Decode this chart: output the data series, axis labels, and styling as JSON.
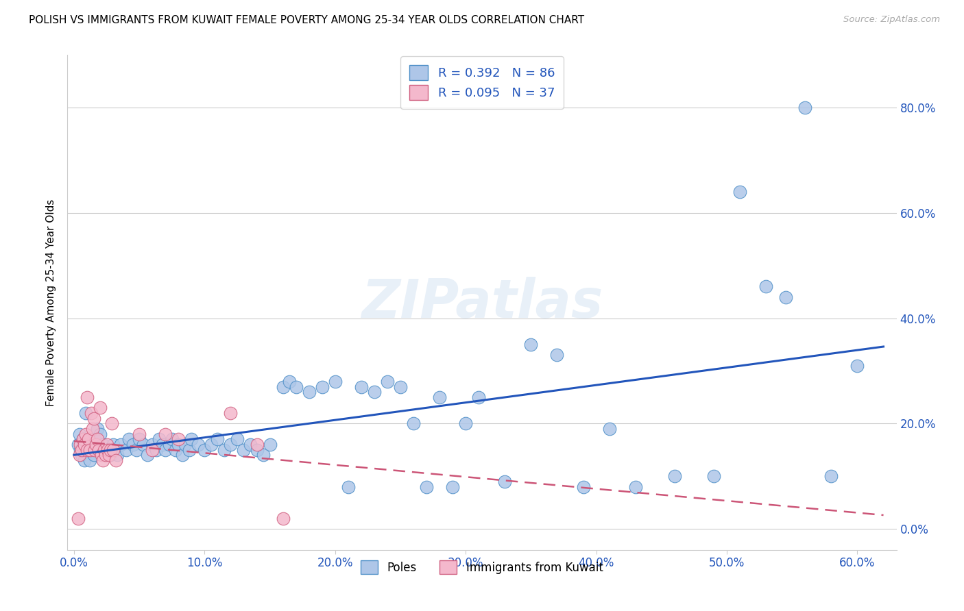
{
  "title": "POLISH VS IMMIGRANTS FROM KUWAIT FEMALE POVERTY AMONG 25-34 YEAR OLDS CORRELATION CHART",
  "source": "Source: ZipAtlas.com",
  "ylabel": "Female Poverty Among 25-34 Year Olds",
  "xlim": [
    -0.005,
    0.63
  ],
  "ylim": [
    -0.04,
    0.9
  ],
  "xticks": [
    0.0,
    0.1,
    0.2,
    0.3,
    0.4,
    0.5,
    0.6
  ],
  "xticklabels": [
    "0.0%",
    "10.0%",
    "20.0%",
    "30.0%",
    "40.0%",
    "50.0%",
    "60.0%"
  ],
  "yticks_right": [
    0.0,
    0.2,
    0.4,
    0.6,
    0.8
  ],
  "yticklabels_right": [
    "0.0%",
    "20.0%",
    "40.0%",
    "60.0%",
    "80.0%"
  ],
  "poles_color": "#aec6e8",
  "poles_edge_color": "#4f90c8",
  "kuwait_color": "#f4b8cc",
  "kuwait_edge_color": "#d06080",
  "poles_line_color": "#2255bb",
  "kuwait_line_color": "#cc5577",
  "poles_R": 0.392,
  "poles_N": 86,
  "kuwait_R": 0.095,
  "kuwait_N": 37,
  "watermark": "ZIPatlas",
  "poles_x": [
    0.003,
    0.004,
    0.005,
    0.006,
    0.007,
    0.008,
    0.009,
    0.01,
    0.011,
    0.012,
    0.013,
    0.014,
    0.015,
    0.016,
    0.018,
    0.019,
    0.02,
    0.022,
    0.025,
    0.028,
    0.03,
    0.033,
    0.036,
    0.04,
    0.042,
    0.045,
    0.048,
    0.05,
    0.053,
    0.056,
    0.06,
    0.063,
    0.065,
    0.068,
    0.07,
    0.073,
    0.075,
    0.078,
    0.08,
    0.083,
    0.085,
    0.088,
    0.09,
    0.095,
    0.1,
    0.105,
    0.11,
    0.115,
    0.12,
    0.125,
    0.13,
    0.135,
    0.14,
    0.145,
    0.15,
    0.16,
    0.165,
    0.17,
    0.18,
    0.19,
    0.2,
    0.21,
    0.22,
    0.23,
    0.24,
    0.25,
    0.26,
    0.27,
    0.28,
    0.29,
    0.3,
    0.31,
    0.33,
    0.35,
    0.37,
    0.39,
    0.41,
    0.43,
    0.46,
    0.49,
    0.51,
    0.53,
    0.545,
    0.56,
    0.58,
    0.6
  ],
  "poles_y": [
    0.16,
    0.18,
    0.15,
    0.14,
    0.17,
    0.13,
    0.22,
    0.15,
    0.16,
    0.13,
    0.15,
    0.16,
    0.14,
    0.17,
    0.19,
    0.15,
    0.18,
    0.16,
    0.15,
    0.14,
    0.16,
    0.14,
    0.16,
    0.15,
    0.17,
    0.16,
    0.15,
    0.17,
    0.16,
    0.14,
    0.16,
    0.15,
    0.17,
    0.16,
    0.15,
    0.16,
    0.17,
    0.15,
    0.16,
    0.14,
    0.16,
    0.15,
    0.17,
    0.16,
    0.15,
    0.16,
    0.17,
    0.15,
    0.16,
    0.17,
    0.15,
    0.16,
    0.15,
    0.14,
    0.16,
    0.27,
    0.28,
    0.27,
    0.26,
    0.27,
    0.28,
    0.08,
    0.27,
    0.26,
    0.28,
    0.27,
    0.2,
    0.08,
    0.25,
    0.08,
    0.2,
    0.25,
    0.09,
    0.35,
    0.33,
    0.08,
    0.19,
    0.08,
    0.1,
    0.1,
    0.64,
    0.46,
    0.44,
    0.8,
    0.1,
    0.31
  ],
  "kuwait_x": [
    0.003,
    0.004,
    0.005,
    0.006,
    0.007,
    0.008,
    0.009,
    0.01,
    0.011,
    0.012,
    0.013,
    0.014,
    0.015,
    0.016,
    0.017,
    0.018,
    0.019,
    0.02,
    0.021,
    0.022,
    0.023,
    0.024,
    0.025,
    0.026,
    0.027,
    0.028,
    0.029,
    0.03,
    0.032,
    0.05,
    0.06,
    0.07,
    0.08,
    0.12,
    0.14,
    0.16,
    0.01
  ],
  "kuwait_y": [
    0.02,
    0.14,
    0.16,
    0.15,
    0.17,
    0.16,
    0.18,
    0.15,
    0.17,
    0.15,
    0.22,
    0.19,
    0.21,
    0.15,
    0.16,
    0.17,
    0.15,
    0.23,
    0.14,
    0.13,
    0.15,
    0.14,
    0.16,
    0.15,
    0.14,
    0.15,
    0.2,
    0.15,
    0.13,
    0.18,
    0.15,
    0.18,
    0.17,
    0.22,
    0.16,
    0.02,
    0.25
  ]
}
